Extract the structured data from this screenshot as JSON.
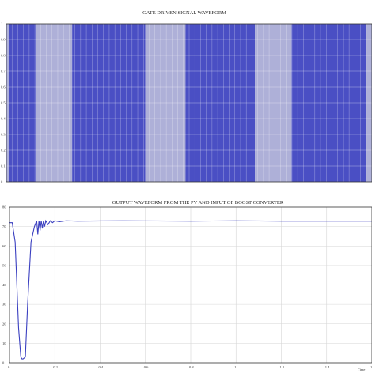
{
  "chart_data": [
    {
      "type": "area",
      "title": "GATE DRIVEN SIGNAL WAVEFORM",
      "xlabel": "",
      "ylabel": "",
      "ylim": [
        0,
        1
      ],
      "yticks": [
        "0",
        "0.1",
        "0.2",
        "0.3",
        "0.4",
        "0.5",
        "0.6",
        "0.7",
        "0.8",
        "0.9",
        "1"
      ],
      "grid": true,
      "x_range": [
        0,
        1
      ],
      "segments": [
        {
          "state": "off",
          "start": 0.0,
          "end": 0.007
        },
        {
          "state": "on",
          "start": 0.007,
          "end": 0.08
        },
        {
          "state": "off",
          "start": 0.08,
          "end": 0.18
        },
        {
          "state": "on",
          "start": 0.18,
          "end": 0.38
        },
        {
          "state": "off",
          "start": 0.38,
          "end": 0.49
        },
        {
          "state": "on",
          "start": 0.49,
          "end": 0.68
        },
        {
          "state": "off",
          "start": 0.68,
          "end": 0.78
        },
        {
          "state": "on",
          "start": 0.78,
          "end": 0.985
        },
        {
          "state": "off",
          "start": 0.985,
          "end": 1.0
        }
      ],
      "colors": {
        "on": "#4a4fc4",
        "off": "#aeb0d8",
        "grid": "#ffffff"
      }
    },
    {
      "type": "line",
      "title": "OUTPUT WAVEFORM FROM THE PV AND INPUT OF BOOST CONVERTER",
      "xlabel": "Time",
      "ylabel": "",
      "xlim": [
        0,
        1.6
      ],
      "ylim": [
        0,
        80
      ],
      "xticks": [
        "0",
        "0.2",
        "0.4",
        "0.6",
        "0.8",
        "1",
        "1.2",
        "1.4",
        "1.6"
      ],
      "yticks": [
        "0",
        "10",
        "20",
        "30",
        "40",
        "50",
        "60",
        "70",
        "80"
      ],
      "grid": true,
      "series": [
        {
          "color": "#3a3fc0",
          "x": [
            0,
            0.012,
            0.025,
            0.04,
            0.05,
            0.055,
            0.06,
            0.07,
            0.08,
            0.095,
            0.11,
            0.12,
            0.125,
            0.13,
            0.135,
            0.14,
            0.145,
            0.15,
            0.155,
            0.16,
            0.17,
            0.18,
            0.19,
            0.2,
            0.22,
            0.25,
            0.3,
            0.5,
            0.8,
            1.0,
            1.2,
            1.4,
            1.6
          ],
          "y": [
            72,
            72,
            62,
            18,
            3,
            2,
            2,
            3,
            30,
            62,
            70,
            73,
            66,
            73,
            68,
            73,
            69,
            73,
            70,
            73,
            71,
            73,
            72,
            73,
            72.5,
            73,
            72.8,
            73,
            72.8,
            73,
            72.8,
            72.8,
            72.8
          ]
        }
      ]
    }
  ]
}
